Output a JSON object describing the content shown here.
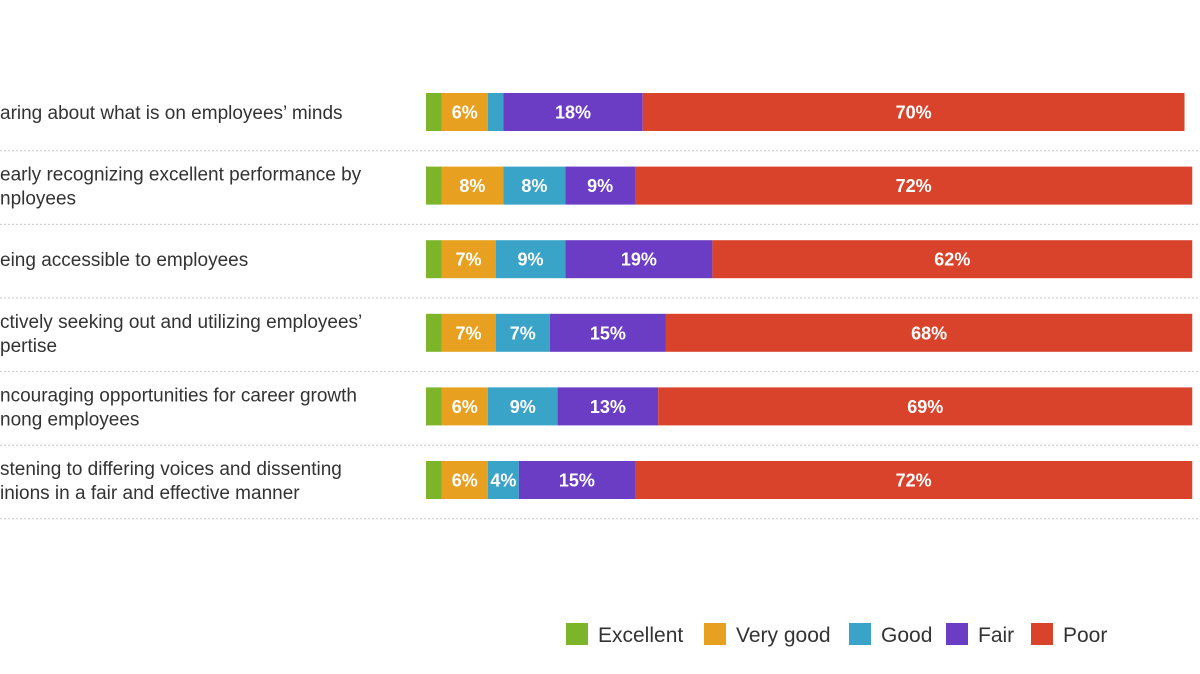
{
  "chart_data": {
    "type": "bar",
    "orientation": "horizontal",
    "stacked": true,
    "categories": [
      [
        "aring about what is on employees’ minds"
      ],
      [
        "early recognizing excellent performance by",
        "nployees"
      ],
      [
        "eing accessible to employees"
      ],
      [
        "ctively seeking out and utilizing employees’",
        "pertise"
      ],
      [
        "ncouraging opportunities for career growth",
        "nong employees"
      ],
      [
        "stening to differing voices and dissenting",
        "inions in a fair and effective manner"
      ]
    ],
    "series": [
      {
        "name": "Excellent",
        "color": "#7cb52a",
        "values": [
          2,
          2,
          2,
          2,
          2,
          2
        ],
        "labels": [
          "",
          "",
          "",
          "",
          "",
          ""
        ]
      },
      {
        "name": "Very good",
        "color": "#e8a020",
        "values": [
          6,
          8,
          7,
          7,
          6,
          6
        ],
        "labels": [
          "6%",
          "8%",
          "7%",
          "7%",
          "6%",
          "6%"
        ]
      },
      {
        "name": "Good",
        "color": "#3aa3c8",
        "values": [
          2,
          8,
          9,
          7,
          9,
          4
        ],
        "labels": [
          "",
          "8%",
          "9%",
          "7%",
          "9%",
          "4%"
        ]
      },
      {
        "name": "Fair",
        "color": "#6a3dc4",
        "values": [
          18,
          9,
          19,
          15,
          13,
          15
        ],
        "labels": [
          "18%",
          "9%",
          "19%",
          "15%",
          "13%",
          "15%"
        ]
      },
      {
        "name": "Poor",
        "color": "#d9432c",
        "values": [
          70,
          72,
          62,
          68,
          69,
          72
        ],
        "labels": [
          "70%",
          "72%",
          "62%",
          "68%",
          "69%",
          "72%"
        ]
      }
    ],
    "xlim": [
      0,
      100
    ],
    "grid": false,
    "legend_position": "bottom-right"
  }
}
